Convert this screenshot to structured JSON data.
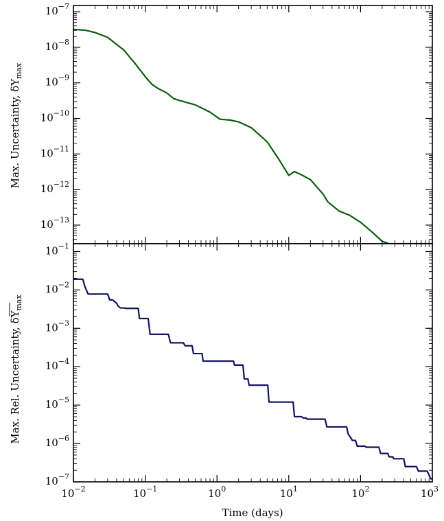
{
  "chart_data": [
    {
      "type": "line",
      "panel": "top",
      "title": "",
      "xlabel": "",
      "ylabel": "Max. Uncertainty, δY",
      "ylabel_sub": "max",
      "xscale": "log",
      "yscale": "log",
      "xlim": [
        0.01,
        1000
      ],
      "ylim": [
        3e-14,
        1.5e-07
      ],
      "yticks": [
        {
          "base": "10",
          "exp": "−7",
          "value": 1e-07
        },
        {
          "base": "10",
          "exp": "−8",
          "value": 1e-08
        },
        {
          "base": "10",
          "exp": "−9",
          "value": 1e-09
        },
        {
          "base": "10",
          "exp": "−10",
          "value": 1e-10
        },
        {
          "base": "10",
          "exp": "−11",
          "value": 1e-11
        },
        {
          "base": "10",
          "exp": "−12",
          "value": 1e-12
        },
        {
          "base": "10",
          "exp": "−13",
          "value": 1e-13
        }
      ],
      "series": [
        {
          "color": "#0b5c0b",
          "x": [
            0.01,
            0.015,
            0.02,
            0.03,
            0.05,
            0.07,
            0.1,
            0.125,
            0.15,
            0.2,
            0.25,
            0.3,
            0.5,
            0.8,
            1.1,
            1.5,
            2.0,
            3.0,
            5.0,
            7.0,
            10,
            12,
            15,
            20,
            30,
            35,
            50,
            70,
            100,
            150,
            200,
            250,
            1000
          ],
          "y": [
            3.2e-08,
            3e-08,
            2.6e-08,
            1.9e-08,
            8.5e-09,
            3.8e-09,
            1.5e-09,
            9e-10,
            7e-10,
            5.2e-10,
            3.6e-10,
            3.2e-10,
            2.4e-10,
            1.5e-10,
            9.5e-11,
            9e-11,
            8e-11,
            5.5e-11,
            2.2e-11,
            8e-12,
            2.5e-12,
            3.2e-12,
            2.6e-12,
            1.9e-12,
            7.5e-13,
            4.5e-13,
            2.5e-13,
            1.9e-13,
            1.2e-13,
            6e-14,
            3.5e-14,
            3e-14,
            3e-14
          ]
        }
      ]
    },
    {
      "type": "line",
      "panel": "bottom",
      "title": "",
      "xlabel": "Time (days)",
      "ylabel": "Max. Rel. Uncertainty, δY",
      "ylabel_sub": "max",
      "xscale": "log",
      "yscale": "log",
      "xlim": [
        0.01,
        1000
      ],
      "ylim": [
        1e-07,
        0.16
      ],
      "xticks": [
        {
          "base": "10",
          "exp": "−2",
          "value": 0.01
        },
        {
          "base": "10",
          "exp": "−1",
          "value": 0.1
        },
        {
          "base": "10",
          "exp": "0",
          "value": 1
        },
        {
          "base": "10",
          "exp": "1",
          "value": 10
        },
        {
          "base": "10",
          "exp": "2",
          "value": 100
        },
        {
          "base": "10",
          "exp": "3",
          "value": 1000
        }
      ],
      "yticks": [
        {
          "base": "10",
          "exp": "−1",
          "value": 0.1
        },
        {
          "base": "10",
          "exp": "−2",
          "value": 0.01
        },
        {
          "base": "10",
          "exp": "−3",
          "value": 0.001
        },
        {
          "base": "10",
          "exp": "−4",
          "value": 0.0001
        },
        {
          "base": "10",
          "exp": "−5",
          "value": 1e-05
        },
        {
          "base": "10",
          "exp": "−6",
          "value": 1e-06
        },
        {
          "base": "10",
          "exp": "−7",
          "value": 1e-07
        }
      ],
      "series": [
        {
          "color": "#12125e",
          "x": [
            0.01,
            0.0135,
            0.0145,
            0.016,
            0.03,
            0.032,
            0.035,
            0.04,
            0.042,
            0.045,
            0.05,
            0.055,
            0.08,
            0.083,
            0.11,
            0.117,
            0.21,
            0.225,
            0.34,
            0.36,
            0.45,
            0.47,
            0.62,
            0.64,
            1.7,
            1.75,
            2.3,
            2.4,
            2.7,
            2.8,
            3.5,
            3.6,
            5.1,
            5.3,
            11.5,
            12.0,
            15.0,
            16.0,
            17.5,
            18.0,
            32,
            34,
            64,
            67,
            73,
            77,
            85,
            90,
            115,
            120,
            180,
            190,
            240,
            250,
            280,
            290,
            400,
            420,
            600,
            640,
            850,
            950,
            1000
          ],
          "y": [
            0.019,
            0.019,
            0.012,
            0.0078,
            0.0078,
            0.0055,
            0.0055,
            0.0045,
            0.0038,
            0.0034,
            0.0034,
            0.0033,
            0.0033,
            0.0018,
            0.0018,
            0.0007,
            0.0007,
            0.00042,
            0.00042,
            0.00035,
            0.00035,
            0.00022,
            0.00022,
            0.00014,
            0.00014,
            0.00011,
            0.00011,
            4.8e-05,
            4.8e-05,
            3.3e-05,
            3.3e-05,
            3.3e-05,
            3.3e-05,
            1.2e-05,
            1.2e-05,
            5e-06,
            5e-06,
            4.6e-06,
            4.6e-06,
            4.3e-06,
            4.3e-06,
            2.7e-06,
            2.7e-06,
            1.8e-06,
            1.4e-06,
            1.2e-06,
            1.2e-06,
            8.5e-07,
            8.5e-07,
            8e-07,
            8e-07,
            5.5e-07,
            5.5e-07,
            4.5e-07,
            4.5e-07,
            4e-07,
            4e-07,
            2.5e-07,
            2.5e-07,
            1.9e-07,
            1.9e-07,
            1.2e-07,
            1.2e-07
          ]
        }
      ]
    }
  ]
}
